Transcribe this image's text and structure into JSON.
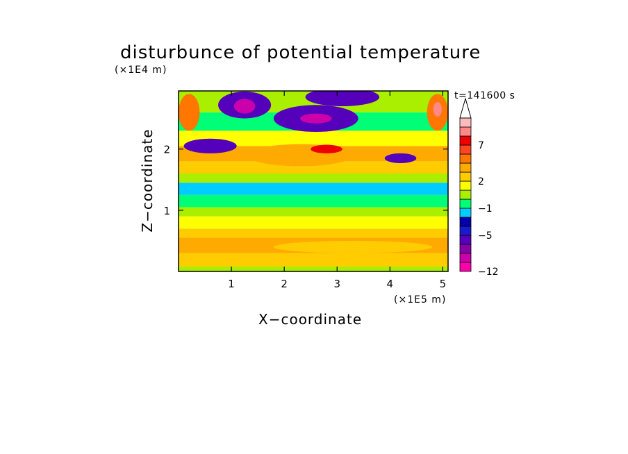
{
  "chart_data": {
    "type": "heatmap",
    "title": "disturbunce of potential temperature",
    "xlabel": "X−coordinate",
    "ylabel": "Z−coordinate",
    "x_unit_label": "(×1E5 m)",
    "y_unit_label": "(×1E4 m)",
    "time_label": "t=141600 s",
    "xlim": [
      0,
      5.1
    ],
    "ylim": [
      0,
      2.95
    ],
    "x_ticks": [
      1,
      2,
      3,
      4,
      5
    ],
    "x_tick_labels": [
      "1",
      "2",
      "3",
      "4",
      "5"
    ],
    "y_ticks": [
      1,
      2
    ],
    "y_tick_labels": [
      "1",
      "2"
    ],
    "colorbar": {
      "levels": [
        -12,
        -10,
        -8,
        -6,
        -5,
        -4,
        -2,
        -1,
        0,
        1,
        2,
        3,
        5,
        6,
        7,
        8,
        9
      ],
      "colors": [
        "#ff00aa",
        "#cc00aa",
        "#8800aa",
        "#5500bb",
        "#1a1acc",
        "#0000aa",
        "#00ccff",
        "#00ff77",
        "#aaee00",
        "#ffff00",
        "#ffcc00",
        "#ffaa00",
        "#ff7700",
        "#ff4422",
        "#ee0000",
        "#ff8888",
        "#ffbbbb"
      ],
      "extend": "max",
      "tick_values": [
        7,
        2,
        -1,
        -5,
        -12
      ],
      "tick_labels": [
        "7",
        "2",
        "−1",
        "−5",
        "−12"
      ]
    },
    "bands": [
      {
        "z": [
          0.0,
          0.08
        ],
        "value": 0
      },
      {
        "z": [
          0.08,
          0.3
        ],
        "value": 2.5
      },
      {
        "z": [
          0.3,
          0.55
        ],
        "value": 4
      },
      {
        "z": [
          0.55,
          0.7
        ],
        "value": 2.5
      },
      {
        "z": [
          0.7,
          0.9
        ],
        "value": 1.5
      },
      {
        "z": [
          0.9,
          1.05
        ],
        "value": 0.5
      },
      {
        "z": [
          1.05,
          1.25
        ],
        "value": -0.5
      },
      {
        "z": [
          1.25,
          1.45
        ],
        "value": -1.5
      },
      {
        "z": [
          1.45,
          1.6
        ],
        "value": 0
      },
      {
        "z": [
          1.6,
          1.8
        ],
        "value": 2.5
      },
      {
        "z": [
          1.8,
          2.05
        ],
        "value": 3.5
      },
      {
        "z": [
          2.05,
          2.3
        ],
        "value": 1
      },
      {
        "z": [
          2.3,
          2.6
        ],
        "value": -0.5
      },
      {
        "z": [
          2.6,
          2.95
        ],
        "value": 0.5
      }
    ],
    "features": [
      {
        "x": 1.25,
        "z": 2.72,
        "rx": 0.5,
        "rz": 0.22,
        "value": -5.5
      },
      {
        "x": 1.25,
        "z": 2.7,
        "rx": 0.2,
        "rz": 0.12,
        "value": -9
      },
      {
        "x": 2.6,
        "z": 2.5,
        "rx": 0.8,
        "rz": 0.22,
        "value": -5.5
      },
      {
        "x": 2.6,
        "z": 2.5,
        "rx": 0.3,
        "rz": 0.08,
        "value": -10
      },
      {
        "x": 2.3,
        "z": 1.9,
        "rx": 1.0,
        "rz": 0.18,
        "value": 4
      },
      {
        "x": 2.8,
        "z": 2.0,
        "rx": 0.3,
        "rz": 0.07,
        "value": 7
      },
      {
        "x": 3.1,
        "z": 2.85,
        "rx": 0.7,
        "rz": 0.15,
        "value": -5.5
      },
      {
        "x": 0.6,
        "z": 2.05,
        "rx": 0.5,
        "rz": 0.12,
        "value": -5.5
      },
      {
        "x": 0.2,
        "z": 2.6,
        "rx": 0.2,
        "rz": 0.3,
        "value": 5.5
      },
      {
        "x": 4.9,
        "z": 2.6,
        "rx": 0.2,
        "rz": 0.3,
        "value": 5.5
      },
      {
        "x": 4.9,
        "z": 2.65,
        "rx": 0.08,
        "rz": 0.12,
        "value": 8.5
      },
      {
        "x": 4.2,
        "z": 1.85,
        "rx": 0.3,
        "rz": 0.08,
        "value": -5.5
      },
      {
        "x": 3.3,
        "z": 0.4,
        "rx": 1.5,
        "rz": 0.1,
        "value": 2.5
      }
    ]
  }
}
